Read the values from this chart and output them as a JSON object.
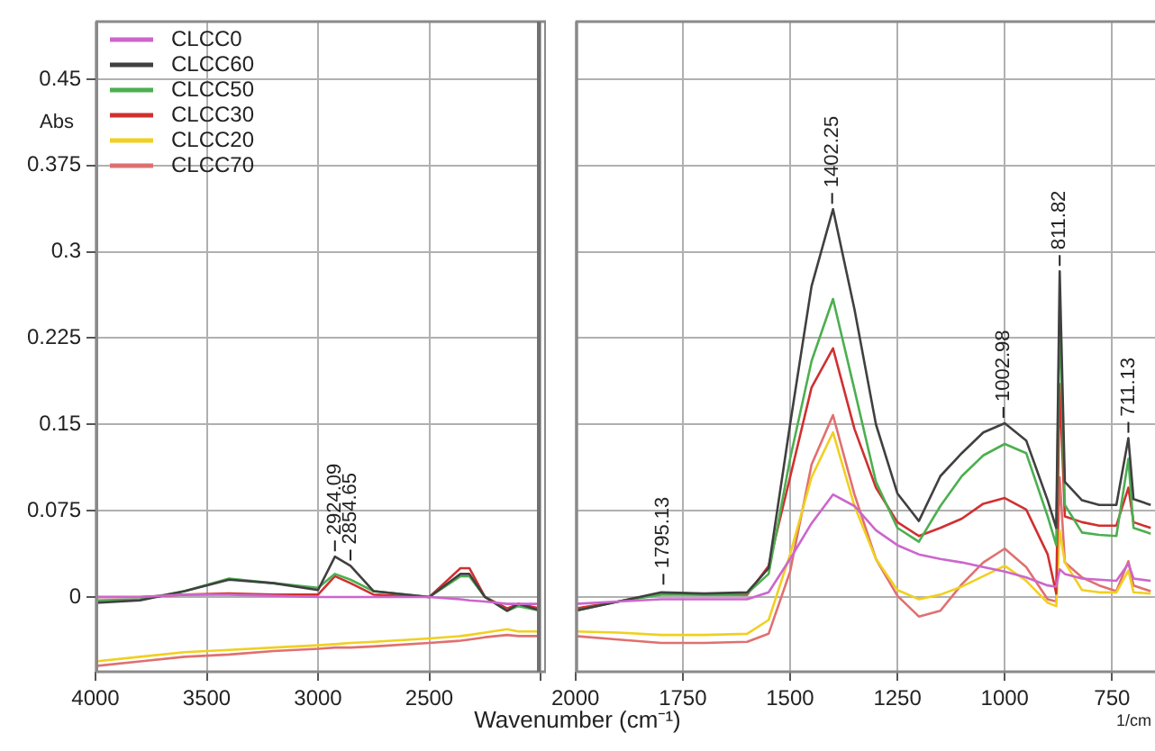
{
  "chart_data": [
    {
      "type": "line",
      "ylabel": "Abs",
      "x": [
        4000,
        3800,
        3600,
        3400,
        3200,
        3000,
        2924,
        2854,
        2750,
        2500,
        2360,
        2320,
        2250,
        2150,
        2100,
        2000
      ],
      "series": [
        {
          "name": "CLCC0",
          "color": "#cc66cc",
          "values": [
            0,
            0,
            0.002,
            0.002,
            0.001,
            0,
            0,
            0,
            0,
            0,
            -0.002,
            -0.003,
            -0.004,
            -0.006,
            -0.006,
            -0.006
          ]
        },
        {
          "name": "CLCC60",
          "color": "#404040",
          "values": [
            -0.005,
            -0.003,
            0.005,
            0.015,
            0.012,
            0.006,
            0.035,
            0.027,
            0.005,
            0,
            0.02,
            0.02,
            0,
            -0.012,
            -0.006,
            -0.012
          ]
        },
        {
          "name": "CLCC50",
          "color": "#4caf50",
          "values": [
            -0.003,
            -0.002,
            0.005,
            0.016,
            0.012,
            0.008,
            0.02,
            0.015,
            0.005,
            0,
            0.018,
            0.018,
            0,
            -0.012,
            -0.008,
            -0.012
          ]
        },
        {
          "name": "CLCC30",
          "color": "#d03030",
          "values": [
            0,
            0,
            0.002,
            0.003,
            0.002,
            0.002,
            0.018,
            0.012,
            0.002,
            0,
            0.025,
            0.025,
            0,
            -0.01,
            -0.006,
            -0.01
          ]
        },
        {
          "name": "CLCC20",
          "color": "#f0d020",
          "values": [
            -0.056,
            -0.052,
            -0.048,
            -0.046,
            -0.044,
            -0.042,
            -0.041,
            -0.04,
            -0.039,
            -0.036,
            -0.034,
            -0.033,
            -0.031,
            -0.028,
            -0.03,
            -0.03
          ]
        },
        {
          "name": "CLCC70",
          "color": "#e07070",
          "values": [
            -0.06,
            -0.056,
            -0.052,
            -0.05,
            -0.047,
            -0.045,
            -0.044,
            -0.044,
            -0.043,
            -0.04,
            -0.038,
            -0.037,
            -0.035,
            -0.033,
            -0.034,
            -0.034
          ]
        }
      ],
      "xlim": [
        4000,
        2000
      ],
      "xticks": [
        4000,
        3500,
        3000,
        2500,
        {
          "value": 2000,
          "label": null
        }
      ],
      "ylim": [
        -0.065,
        0.5
      ],
      "yticks": [
        0,
        0.075,
        0.15,
        0.225,
        0.3,
        0.375,
        0.45
      ],
      "annotations": [
        {
          "text": "2924.09",
          "x": 2924,
          "y": 0.035
        },
        {
          "text": "2854.65",
          "x": 2854,
          "y": 0.027
        }
      ],
      "grid": true,
      "legend": "top left",
      "marker": "none",
      "line_style": "solid"
    },
    {
      "type": "line",
      "xlabel": "Wavenumber (cm⁻¹)",
      "x": [
        2000,
        1900,
        1800,
        1700,
        1600,
        1550,
        1500,
        1450,
        1400,
        1350,
        1300,
        1250,
        1200,
        1150,
        1100,
        1050,
        1000,
        950,
        900,
        880,
        872,
        860,
        820,
        780,
        740,
        712,
        700,
        660
      ],
      "series": [
        {
          "color": "#cc66cc",
          "values": [
            -0.006,
            -0.004,
            -0.002,
            -0.002,
            -0.002,
            0.004,
            0.033,
            0.064,
            0.089,
            0.079,
            0.058,
            0.045,
            0.037,
            0.033,
            0.03,
            0.026,
            0.022,
            0.017,
            0.01,
            0.009,
            0.024,
            0.02,
            0.016,
            0.015,
            0.014,
            0.029,
            0.016,
            0.014
          ]
        },
        {
          "color": "#404040",
          "values": [
            -0.012,
            -0.004,
            0.004,
            0.003,
            0.004,
            0.025,
            0.15,
            0.27,
            0.337,
            0.25,
            0.15,
            0.09,
            0.066,
            0.105,
            0.125,
            0.143,
            0.151,
            0.136,
            0.084,
            0.06,
            0.283,
            0.1,
            0.084,
            0.08,
            0.08,
            0.138,
            0.085,
            0.08
          ]
        },
        {
          "color": "#4caf50",
          "values": [
            -0.012,
            -0.004,
            0.002,
            0.002,
            0.003,
            0.02,
            0.12,
            0.205,
            0.259,
            0.18,
            0.1,
            0.06,
            0.048,
            0.079,
            0.105,
            0.123,
            0.133,
            0.125,
            0.07,
            0.045,
            0.25,
            0.08,
            0.056,
            0.054,
            0.053,
            0.12,
            0.06,
            0.055
          ]
        },
        {
          "color": "#d03030",
          "values": [
            -0.01,
            -0.004,
            0.003,
            0.002,
            0.002,
            0.027,
            0.104,
            0.182,
            0.216,
            0.146,
            0.095,
            0.065,
            0.053,
            0.06,
            0.068,
            0.081,
            0.086,
            0.076,
            0.037,
            0.003,
            0.185,
            0.07,
            0.065,
            0.062,
            0.062,
            0.095,
            0.065,
            0.06
          ]
        },
        {
          "color": "#f0d020",
          "values": [
            -0.03,
            -0.031,
            -0.033,
            -0.033,
            -0.032,
            -0.02,
            0.037,
            0.104,
            0.143,
            0.079,
            0.033,
            0.006,
            -0.002,
            0.002,
            0.009,
            0.018,
            0.027,
            0.014,
            -0.005,
            -0.008,
            0.058,
            0.03,
            0.006,
            0.004,
            0.004,
            0.023,
            0.004,
            0.003
          ]
        },
        {
          "color": "#e07070",
          "values": [
            -0.034,
            -0.037,
            -0.04,
            -0.04,
            -0.039,
            -0.032,
            0.022,
            0.115,
            0.158,
            0.089,
            0.033,
            0.001,
            -0.017,
            -0.012,
            0.011,
            0.03,
            0.042,
            0.026,
            -0.002,
            -0.004,
            0.104,
            0.03,
            0.017,
            0.01,
            0.005,
            0.031,
            0.01,
            0.005
          ]
        }
      ],
      "xlim": [
        2000,
        650
      ],
      "xticks": [
        2000,
        1750,
        1500,
        1250,
        1000,
        750
      ],
      "ylim": [
        -0.065,
        0.5
      ],
      "yticks": [
        0,
        0.075,
        0.15,
        0.225,
        0.3,
        0.375,
        0.45
      ],
      "annotations": [
        {
          "text": "1795.13",
          "x": 1795,
          "y": 0.006
        },
        {
          "text": "1402.25",
          "x": 1402,
          "y": 0.337
        },
        {
          "text": "1002.98",
          "x": 1003,
          "y": 0.151
        },
        {
          "text": "811.82",
          "x": 872,
          "y": 0.283
        },
        {
          "text": "711.13",
          "x": 712,
          "y": 0.138
        },
        "1/cm"
      ],
      "tick_labels": "x",
      "grid": true,
      "marker": "none",
      "line_style": "solid"
    }
  ]
}
